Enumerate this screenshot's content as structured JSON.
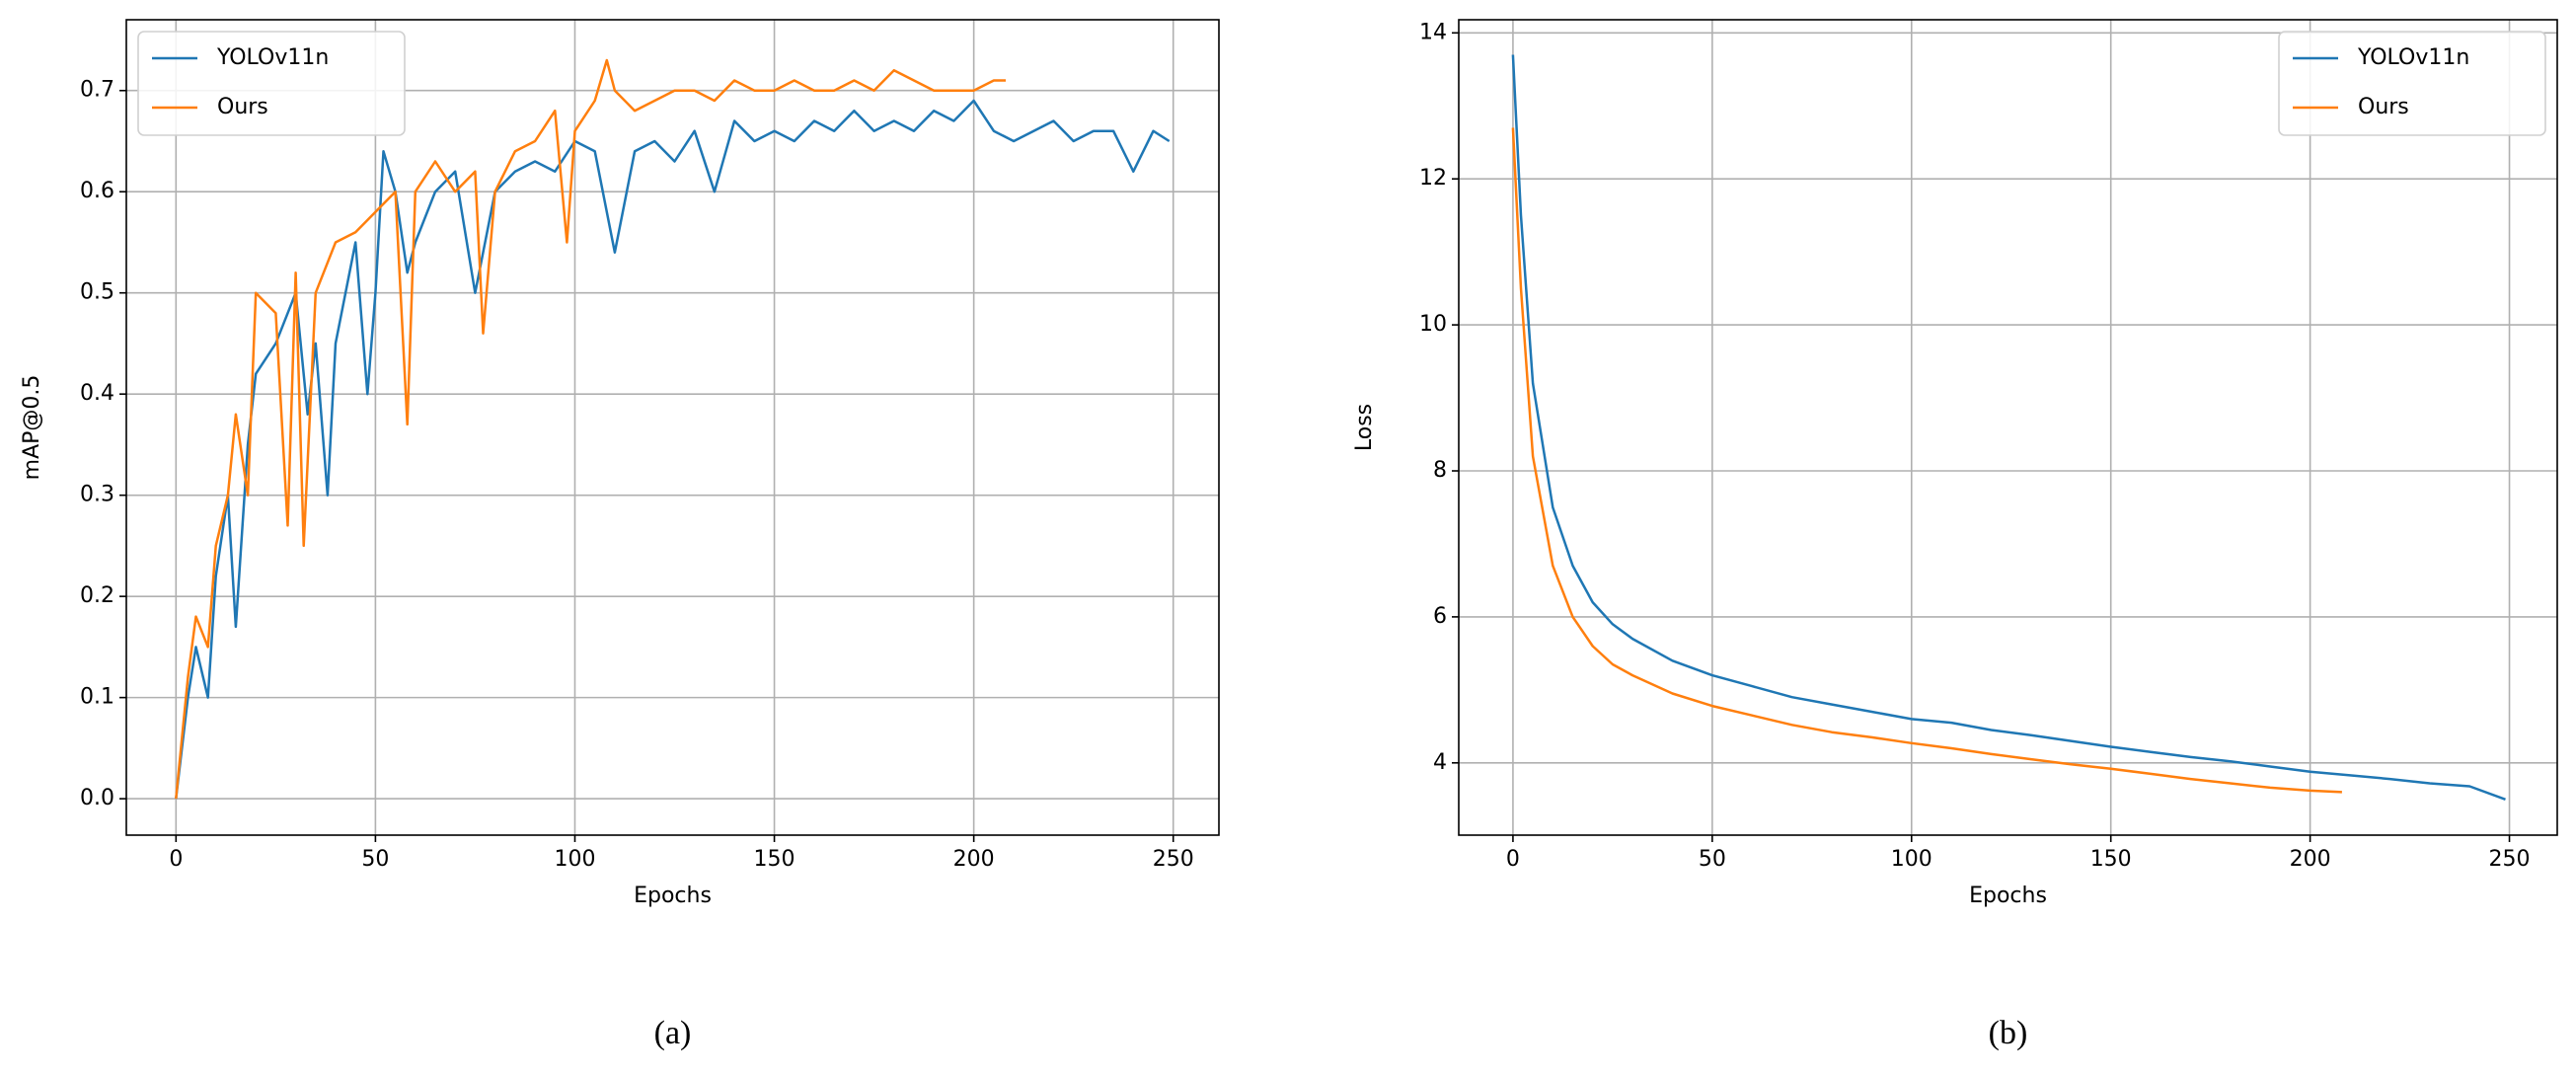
{
  "chart_data": [
    {
      "type": "line",
      "caption": "(a)",
      "xlabel": "Epochs",
      "ylabel": "mAP@0.5",
      "xlim": [
        -12.45,
        261.45
      ],
      "ylim": [
        -0.036,
        0.77
      ],
      "xticks": [
        0,
        50,
        100,
        150,
        200,
        250
      ],
      "yticks": [
        {
          "value": 0,
          "label": "0.0"
        },
        0.1,
        0.2,
        0.3,
        0.4,
        0.5,
        0.6,
        0.7
      ],
      "grid": true,
      "legend": "upper left",
      "series": [
        {
          "name": "YOLOv11n",
          "color": "#1f77b4",
          "x": [
            0,
            3,
            5,
            8,
            10,
            13,
            15,
            18,
            20,
            25,
            30,
            33,
            35,
            38,
            40,
            45,
            48,
            50,
            52,
            55,
            58,
            60,
            65,
            70,
            75,
            80,
            85,
            90,
            95,
            100,
            105,
            110,
            115,
            120,
            125,
            130,
            135,
            140,
            145,
            150,
            155,
            160,
            165,
            170,
            175,
            180,
            185,
            190,
            195,
            200,
            205,
            210,
            215,
            220,
            225,
            230,
            235,
            240,
            245,
            249
          ],
          "values": [
            0,
            0.1,
            0.15,
            0.1,
            0.22,
            0.3,
            0.17,
            0.35,
            0.42,
            0.45,
            0.5,
            0.38,
            0.45,
            0.3,
            0.45,
            0.55,
            0.4,
            0.5,
            0.64,
            0.6,
            0.52,
            0.55,
            0.6,
            0.62,
            0.5,
            0.6,
            0.62,
            0.63,
            0.62,
            0.65,
            0.64,
            0.54,
            0.64,
            0.65,
            0.63,
            0.66,
            0.6,
            0.67,
            0.65,
            0.66,
            0.65,
            0.67,
            0.66,
            0.68,
            0.66,
            0.67,
            0.66,
            0.68,
            0.67,
            0.69,
            0.66,
            0.65,
            0.66,
            0.67,
            0.65,
            0.66,
            0.66,
            0.62,
            0.66,
            0.65
          ]
        },
        {
          "name": "Ours",
          "color": "#ff7f0e",
          "x": [
            0,
            3,
            5,
            8,
            10,
            13,
            15,
            18,
            20,
            25,
            28,
            30,
            32,
            35,
            40,
            45,
            50,
            55,
            58,
            60,
            65,
            70,
            75,
            77,
            80,
            85,
            90,
            95,
            98,
            100,
            105,
            108,
            110,
            115,
            120,
            125,
            130,
            135,
            140,
            145,
            150,
            155,
            160,
            165,
            170,
            175,
            180,
            185,
            190,
            195,
            200,
            205,
            208
          ],
          "values": [
            0,
            0.12,
            0.18,
            0.15,
            0.25,
            0.3,
            0.38,
            0.3,
            0.5,
            0.48,
            0.27,
            0.52,
            0.25,
            0.5,
            0.55,
            0.56,
            0.58,
            0.6,
            0.37,
            0.6,
            0.63,
            0.6,
            0.62,
            0.46,
            0.6,
            0.64,
            0.65,
            0.68,
            0.55,
            0.66,
            0.69,
            0.73,
            0.7,
            0.68,
            0.69,
            0.7,
            0.7,
            0.69,
            0.71,
            0.7,
            0.7,
            0.71,
            0.7,
            0.7,
            0.71,
            0.7,
            0.72,
            0.71,
            0.7,
            0.7,
            0.7,
            0.71,
            0.71
          ]
        }
      ]
    },
    {
      "type": "line",
      "caption": "(b)",
      "xlabel": "Epochs",
      "ylabel": "Loss",
      "xlim": [
        -13.6,
        262
      ],
      "ylim": [
        3.01,
        14.18
      ],
      "xticks": [
        0,
        50,
        100,
        150,
        200,
        250
      ],
      "yticks": [
        4,
        6,
        8,
        10,
        12,
        14
      ],
      "grid": true,
      "legend": "upper right",
      "series": [
        {
          "name": "YOLOv11n",
          "color": "#1f77b4",
          "x": [
            0,
            2,
            5,
            10,
            15,
            20,
            25,
            30,
            40,
            50,
            60,
            70,
            80,
            90,
            100,
            110,
            120,
            130,
            140,
            150,
            160,
            170,
            180,
            190,
            200,
            210,
            220,
            230,
            240,
            249
          ],
          "values": [
            13.7,
            11.5,
            9.2,
            7.5,
            6.7,
            6.2,
            5.9,
            5.7,
            5.4,
            5.2,
            5.05,
            4.9,
            4.8,
            4.7,
            4.6,
            4.55,
            4.45,
            4.38,
            4.3,
            4.22,
            4.15,
            4.08,
            4.02,
            3.95,
            3.88,
            3.83,
            3.78,
            3.72,
            3.68,
            3.5
          ]
        },
        {
          "name": "Ours",
          "color": "#ff7f0e",
          "x": [
            0,
            2,
            5,
            10,
            15,
            20,
            25,
            30,
            40,
            50,
            60,
            70,
            80,
            90,
            100,
            110,
            120,
            130,
            140,
            150,
            160,
            170,
            180,
            190,
            200,
            208
          ],
          "values": [
            12.7,
            10.5,
            8.2,
            6.7,
            6.0,
            5.6,
            5.35,
            5.2,
            4.95,
            4.78,
            4.65,
            4.52,
            4.42,
            4.35,
            4.27,
            4.2,
            4.12,
            4.05,
            3.98,
            3.92,
            3.85,
            3.78,
            3.72,
            3.66,
            3.62,
            3.6
          ]
        }
      ]
    }
  ]
}
